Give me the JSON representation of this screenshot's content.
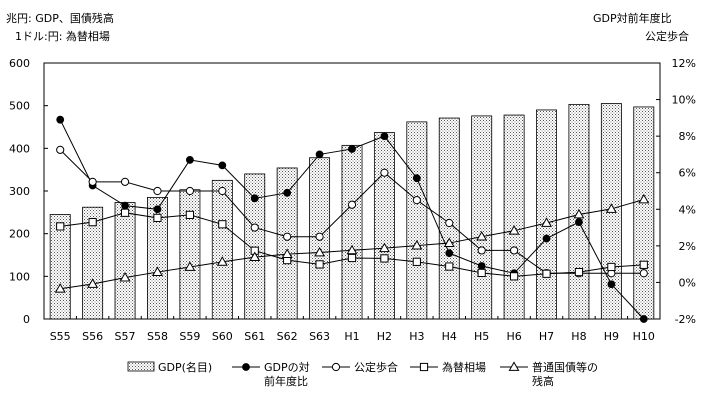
{
  "notes": {
    "left_line1": "兆円: GDP、国債残高",
    "left_line2": "1ドル:円: 為替相場",
    "right_line1": "GDP対前年度比",
    "right_line2": "公定歩合"
  },
  "chart_data": {
    "type": "bar",
    "categories": [
      "S55",
      "S56",
      "S57",
      "S58",
      "S59",
      "S60",
      "S61",
      "S62",
      "S63",
      "H1",
      "H2",
      "H3",
      "H4",
      "H5",
      "H6",
      "H7",
      "H8",
      "H9",
      "H10"
    ],
    "left_axis": {
      "ylim": [
        0,
        600
      ],
      "ticks": [
        0,
        100,
        200,
        300,
        400,
        500,
        600
      ]
    },
    "right_axis": {
      "ylim": [
        -2,
        12
      ],
      "ticks": [
        -2,
        0,
        2,
        4,
        6,
        8,
        10,
        12
      ],
      "tick_labels": [
        "-2%",
        "0%",
        "2%",
        "4%",
        "6%",
        "8%",
        "10%",
        "12%"
      ]
    },
    "series": [
      {
        "name": "GDP(名目)",
        "type": "bar",
        "axis": "left",
        "values": [
          245,
          262,
          273,
          285,
          303,
          325,
          340,
          354,
          378,
          407,
          437,
          462,
          471,
          476,
          478,
          490,
          503,
          505,
          497
        ]
      },
      {
        "name": "GDPの対前年度比",
        "type": "line",
        "marker": "filled-circle",
        "axis": "right",
        "values": [
          8.9,
          5.3,
          4.2,
          4.0,
          6.7,
          6.4,
          4.6,
          4.9,
          7.0,
          7.3,
          8.0,
          5.7,
          1.6,
          0.9,
          0.5,
          2.4,
          3.3,
          -0.1,
          -2.0
        ]
      },
      {
        "name": "公定歩合",
        "type": "line",
        "marker": "open-circle",
        "axis": "right",
        "values": [
          7.25,
          5.5,
          5.5,
          5.0,
          5.0,
          5.0,
          3.0,
          2.5,
          2.5,
          4.25,
          6.0,
          4.5,
          3.25,
          1.75,
          1.75,
          0.5,
          0.5,
          0.5,
          0.5
        ]
      },
      {
        "name": "為替相場",
        "type": "line",
        "marker": "open-square",
        "axis": "left",
        "values": [
          217,
          227,
          249,
          237,
          244,
          222,
          160,
          138,
          128,
          143,
          142,
          134,
          123,
          108,
          100,
          106,
          110,
          122,
          127
        ]
      },
      {
        "name": "普通国債等の残高",
        "type": "line",
        "marker": "open-triangle",
        "axis": "left",
        "values": [
          71,
          82,
          97,
          110,
          122,
          134,
          145,
          152,
          156,
          161,
          166,
          172,
          178,
          193,
          207,
          225,
          245,
          258,
          280
        ]
      }
    ],
    "legend": [
      {
        "line1": "GDP(名目)",
        "line2": ""
      },
      {
        "line1": "GDPの対",
        "line2": "前年度比"
      },
      {
        "line1": "公定歩合",
        "line2": ""
      },
      {
        "line1": "為替相場",
        "line2": ""
      },
      {
        "line1": "普通国債等の",
        "line2": "残高"
      }
    ],
    "legend_placement": "bottom",
    "grid": false
  }
}
